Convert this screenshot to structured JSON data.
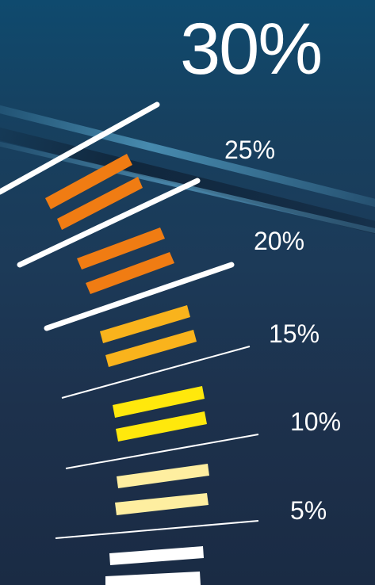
{
  "headline": "30%",
  "scale_labels": [
    "25%",
    "20%",
    "15%",
    "10%",
    "5%"
  ],
  "colors": {
    "background": "#1c3a58",
    "orange": "#f07c13",
    "amber": "#f9b31c",
    "yellow": "#ffe80c",
    "pale_yellow": "#feeea0",
    "white": "#ffffff"
  }
}
